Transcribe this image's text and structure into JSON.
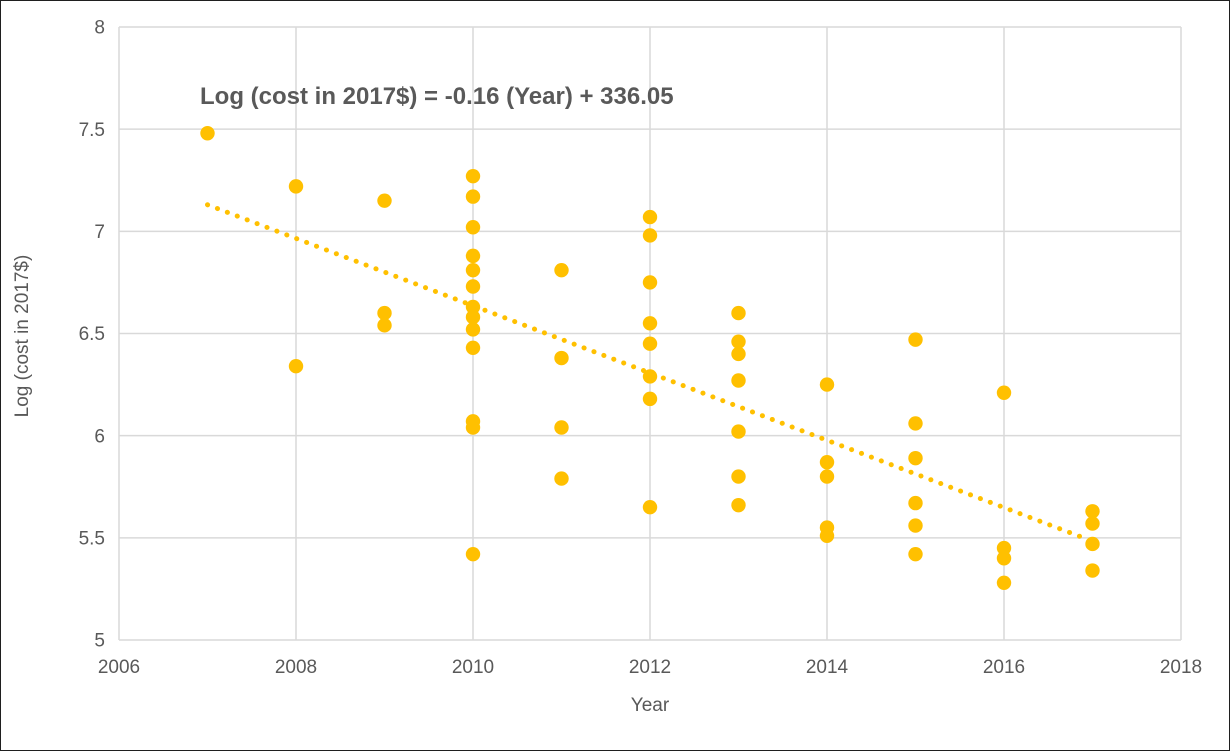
{
  "page": {
    "background": "#ffffff",
    "border_color": "#1f1f1f"
  },
  "chart_data": {
    "type": "scatter",
    "annotation": "Log (cost in 2017$) = -0.16 (Year) + 336.05",
    "xlabel": "Year",
    "ylabel": "Log (cost in 2017$)",
    "xlim": [
      2006,
      2018
    ],
    "ylim": [
      5,
      8
    ],
    "x_ticks": [
      2006,
      2008,
      2010,
      2012,
      2014,
      2016,
      2018
    ],
    "y_ticks": [
      8,
      7.5,
      7,
      6.5,
      6,
      5.5,
      5
    ],
    "grid": true,
    "legend_position": "none",
    "point_color": "#FFC000",
    "grid_color": "#D9D9D9",
    "text_color": "#595959",
    "points": [
      {
        "x": 2007,
        "y": 7.48
      },
      {
        "x": 2008,
        "y": 7.22
      },
      {
        "x": 2008,
        "y": 6.34
      },
      {
        "x": 2009,
        "y": 7.15
      },
      {
        "x": 2009,
        "y": 6.6
      },
      {
        "x": 2009,
        "y": 6.54
      },
      {
        "x": 2010,
        "y": 7.27
      },
      {
        "x": 2010,
        "y": 7.17
      },
      {
        "x": 2010,
        "y": 7.02
      },
      {
        "x": 2010,
        "y": 6.88
      },
      {
        "x": 2010,
        "y": 6.81
      },
      {
        "x": 2010,
        "y": 6.73
      },
      {
        "x": 2010,
        "y": 6.63
      },
      {
        "x": 2010,
        "y": 6.58
      },
      {
        "x": 2010,
        "y": 6.52
      },
      {
        "x": 2010,
        "y": 6.43
      },
      {
        "x": 2010,
        "y": 6.07
      },
      {
        "x": 2010,
        "y": 6.04
      },
      {
        "x": 2010,
        "y": 5.42
      },
      {
        "x": 2011,
        "y": 6.81
      },
      {
        "x": 2011,
        "y": 6.38
      },
      {
        "x": 2011,
        "y": 6.04
      },
      {
        "x": 2011,
        "y": 5.79
      },
      {
        "x": 2012,
        "y": 7.07
      },
      {
        "x": 2012,
        "y": 6.98
      },
      {
        "x": 2012,
        "y": 6.75
      },
      {
        "x": 2012,
        "y": 6.55
      },
      {
        "x": 2012,
        "y": 6.45
      },
      {
        "x": 2012,
        "y": 6.29
      },
      {
        "x": 2012,
        "y": 6.18
      },
      {
        "x": 2012,
        "y": 5.65
      },
      {
        "x": 2013,
        "y": 6.6
      },
      {
        "x": 2013,
        "y": 6.46
      },
      {
        "x": 2013,
        "y": 6.4
      },
      {
        "x": 2013,
        "y": 6.27
      },
      {
        "x": 2013,
        "y": 6.02
      },
      {
        "x": 2013,
        "y": 5.8
      },
      {
        "x": 2013,
        "y": 5.66
      },
      {
        "x": 2014,
        "y": 6.25
      },
      {
        "x": 2014,
        "y": 5.87
      },
      {
        "x": 2014,
        "y": 5.8
      },
      {
        "x": 2014,
        "y": 5.55
      },
      {
        "x": 2014,
        "y": 5.51
      },
      {
        "x": 2015,
        "y": 6.47
      },
      {
        "x": 2015,
        "y": 6.06
      },
      {
        "x": 2015,
        "y": 5.89
      },
      {
        "x": 2015,
        "y": 5.67
      },
      {
        "x": 2015,
        "y": 5.56
      },
      {
        "x": 2015,
        "y": 5.42
      },
      {
        "x": 2016,
        "y": 6.21
      },
      {
        "x": 2016,
        "y": 5.45
      },
      {
        "x": 2016,
        "y": 5.4
      },
      {
        "x": 2016,
        "y": 5.28
      },
      {
        "x": 2017,
        "y": 5.63
      },
      {
        "x": 2017,
        "y": 5.57
      },
      {
        "x": 2017,
        "y": 5.47
      },
      {
        "x": 2017,
        "y": 5.34
      }
    ],
    "trendline": {
      "style": "dotted",
      "color": "#FFC000",
      "x1": 2007,
      "y1": 7.13,
      "x2": 2016.9,
      "y2": 5.5
    }
  }
}
